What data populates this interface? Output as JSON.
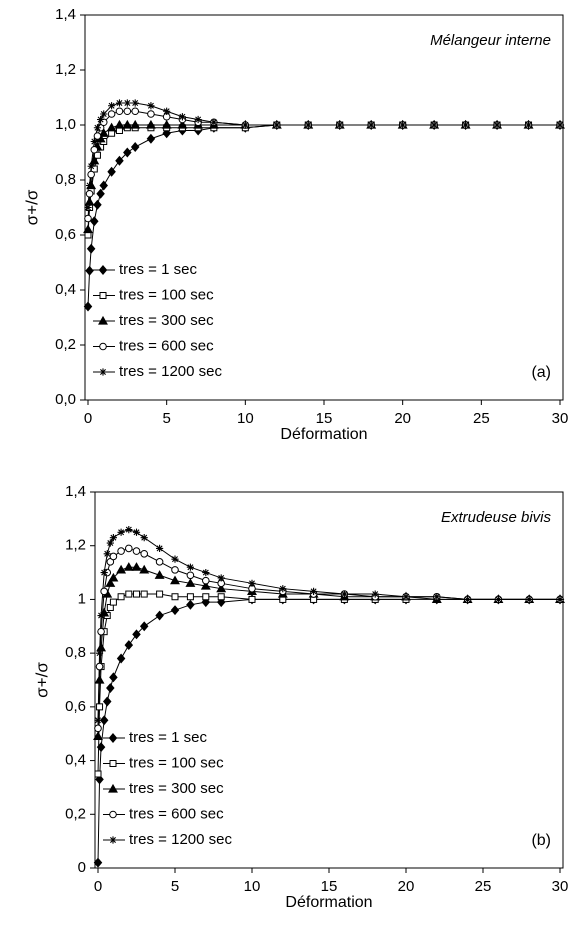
{
  "chart_data": [
    {
      "type": "line",
      "xlabel": "Déformation",
      "ylabel": "σ+/σ",
      "annotations": [
        "Mélangeur interne",
        "(a)"
      ],
      "legend": "lower left",
      "xlim": [
        0,
        30
      ],
      "xticks": [
        0,
        5,
        10,
        15,
        20,
        25,
        30
      ],
      "ylim": [
        0,
        1.4
      ],
      "yticks": [
        {
          "value": 0,
          "label": "0,0"
        },
        {
          "value": 0.2,
          "label": "0,2"
        },
        {
          "value": 0.4,
          "label": "0,4"
        },
        {
          "value": 0.6,
          "label": "0,6"
        },
        {
          "value": 0.8,
          "label": "0,8"
        },
        {
          "value": 1,
          "label": "1,0"
        },
        {
          "value": 1.2,
          "label": "1,2"
        },
        {
          "value": 1.4,
          "label": "1,4"
        }
      ],
      "x": [
        0,
        0.1,
        0.2,
        0.4,
        0.6,
        0.8,
        1,
        1.5,
        2,
        2.5,
        3,
        4,
        5,
        6,
        7,
        8,
        10,
        12,
        14,
        16,
        18,
        20,
        22,
        24,
        26,
        28,
        30
      ],
      "series": [
        {
          "name": "tres = 1 sec",
          "color": "#000",
          "marker": "diamond",
          "values": [
            0.34,
            0.47,
            0.55,
            0.65,
            0.71,
            0.75,
            0.78,
            0.83,
            0.87,
            0.9,
            0.92,
            0.95,
            0.97,
            0.98,
            0.98,
            0.99,
            0.99,
            1.0,
            1.0,
            1.0,
            1.0,
            1.0,
            1.0,
            1.0,
            1.0,
            1.0,
            1.0
          ]
        },
        {
          "name": "tres = 100 sec",
          "color": "#000",
          "marker": "square",
          "values": [
            0.6,
            0.7,
            0.76,
            0.84,
            0.89,
            0.92,
            0.94,
            0.97,
            0.98,
            0.99,
            0.99,
            0.99,
            0.99,
            0.99,
            0.99,
            0.99,
            0.99,
            1.0,
            1.0,
            1.0,
            1.0,
            1.0,
            1.0,
            1.0,
            1.0,
            1.0,
            1.0
          ]
        },
        {
          "name": "tres = 300 sec",
          "color": "#000",
          "marker": "triangle",
          "values": [
            0.62,
            0.72,
            0.78,
            0.87,
            0.92,
            0.95,
            0.97,
            0.99,
            1.0,
            1.0,
            1.0,
            1.0,
            1.0,
            1.0,
            1.0,
            1.0,
            1.0,
            1.0,
            1.0,
            1.0,
            1.0,
            1.0,
            1.0,
            1.0,
            1.0,
            1.0,
            1.0
          ]
        },
        {
          "name": "tres = 600 sec",
          "color": "#000",
          "marker": "circle",
          "values": [
            0.66,
            0.75,
            0.82,
            0.91,
            0.96,
            0.99,
            1.01,
            1.04,
            1.05,
            1.05,
            1.05,
            1.04,
            1.03,
            1.02,
            1.01,
            1.01,
            1.0,
            1.0,
            1.0,
            1.0,
            1.0,
            1.0,
            1.0,
            1.0,
            1.0,
            1.0,
            1.0
          ]
        },
        {
          "name": "tres = 1200 sec",
          "color": "#000",
          "marker": "star",
          "values": [
            0.7,
            0.78,
            0.85,
            0.94,
            0.99,
            1.02,
            1.04,
            1.07,
            1.08,
            1.08,
            1.08,
            1.07,
            1.05,
            1.03,
            1.02,
            1.01,
            1.0,
            1.0,
            1.0,
            1.0,
            1.0,
            1.0,
            1.0,
            1.0,
            1.0,
            1.0,
            1.0
          ]
        }
      ]
    },
    {
      "type": "line",
      "xlabel": "Déformation",
      "ylabel": "σ+/σ",
      "annotations": [
        "Extrudeuse bivis",
        "(b)"
      ],
      "legend": "lower left",
      "xlim": [
        0,
        30
      ],
      "xticks": [
        0,
        5,
        10,
        15,
        20,
        25,
        30
      ],
      "ylim": [
        0,
        1.4
      ],
      "yticks": [
        0,
        {
          "value": 0.2,
          "label": "0,2"
        },
        {
          "value": 0.4,
          "label": "0,4"
        },
        {
          "value": 0.6,
          "label": "0,6"
        },
        {
          "value": 0.8,
          "label": "0,8"
        },
        1,
        {
          "value": 1.2,
          "label": "1,2"
        },
        {
          "value": 1.4,
          "label": "1,4"
        }
      ],
      "x": [
        0,
        0.1,
        0.2,
        0.4,
        0.6,
        0.8,
        1,
        1.5,
        2,
        2.5,
        3,
        4,
        5,
        6,
        7,
        8,
        10,
        12,
        14,
        16,
        18,
        20,
        22,
        24,
        26,
        28,
        30
      ],
      "series": [
        {
          "name": "tres = 1 sec",
          "color": "#000",
          "marker": "diamond",
          "values": [
            0.02,
            0.33,
            0.45,
            0.55,
            0.62,
            0.67,
            0.71,
            0.78,
            0.83,
            0.87,
            0.9,
            0.94,
            0.96,
            0.98,
            0.99,
            0.99,
            1.0,
            1.0,
            1.0,
            1.0,
            1.0,
            1.0,
            1.0,
            1.0,
            1.0,
            1.0,
            1.0
          ]
        },
        {
          "name": "tres = 100 sec",
          "color": "#000",
          "marker": "square",
          "values": [
            0.35,
            0.6,
            0.75,
            0.88,
            0.94,
            0.97,
            0.99,
            1.01,
            1.02,
            1.02,
            1.02,
            1.02,
            1.01,
            1.01,
            1.01,
            1.01,
            1.0,
            1.0,
            1.0,
            1.0,
            1.0,
            1.0,
            null,
            null,
            null,
            null,
            null
          ]
        },
        {
          "name": "tres = 300 sec",
          "color": "#000",
          "marker": "triangle",
          "values": [
            0.49,
            0.7,
            0.82,
            0.95,
            1.02,
            1.06,
            1.08,
            1.11,
            1.12,
            1.12,
            1.11,
            1.09,
            1.07,
            1.06,
            1.05,
            1.04,
            1.03,
            1.02,
            1.02,
            1.01,
            1.01,
            1.01,
            1.0,
            1.0,
            1.0,
            1.0,
            1.0
          ]
        },
        {
          "name": "tres = 600 sec",
          "color": "#000",
          "marker": "circle",
          "values": [
            0.52,
            0.75,
            0.88,
            1.03,
            1.1,
            1.14,
            1.16,
            1.18,
            1.19,
            1.18,
            1.17,
            1.14,
            1.11,
            1.09,
            1.07,
            1.06,
            1.04,
            1.03,
            1.02,
            1.02,
            1.01,
            1.01,
            1.01,
            1.0,
            1.0,
            1.0,
            1.0
          ]
        },
        {
          "name": "tres = 1200 sec",
          "color": "#000",
          "marker": "star",
          "values": [
            0.55,
            0.8,
            0.94,
            1.1,
            1.17,
            1.21,
            1.23,
            1.25,
            1.26,
            1.25,
            1.23,
            1.19,
            1.15,
            1.12,
            1.1,
            1.08,
            1.06,
            1.04,
            1.03,
            1.02,
            1.02,
            1.01,
            1.01,
            1.0,
            1.0,
            1.0,
            1.0
          ]
        }
      ]
    }
  ]
}
